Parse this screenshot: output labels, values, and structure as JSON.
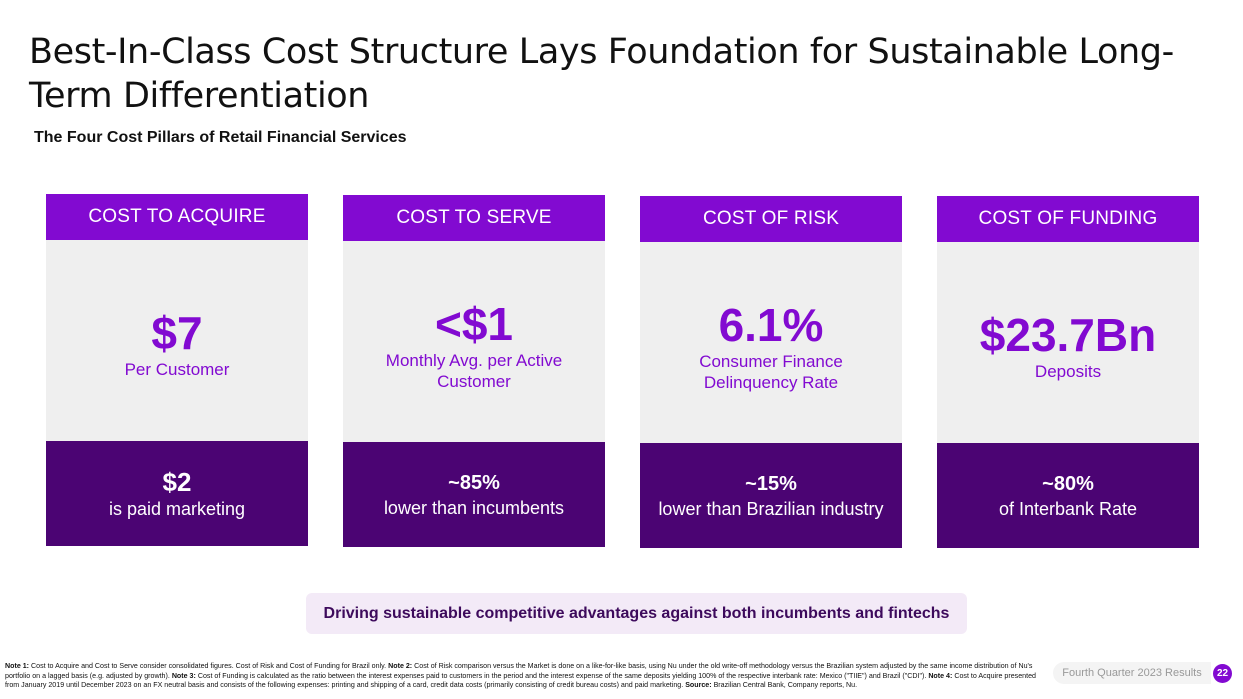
{
  "slide": {
    "title": "Best-In-Class Cost Structure Lays Foundation for Sustainable Long-Term Differentiation",
    "subtitle": "The Four Cost Pillars of Retail Financial Services"
  },
  "pillars": [
    {
      "header": "COST TO ACQUIRE",
      "value": "$7",
      "label": "Per Customer",
      "foot_value": "$2",
      "foot_label": "is paid marketing"
    },
    {
      "header": "COST TO SERVE",
      "value": "<$1",
      "label": "Monthly Avg. per Active Customer",
      "foot_value": "~85%",
      "foot_label": "lower than incumbents"
    },
    {
      "header": "COST OF RISK",
      "value": "6.1%",
      "label": "Consumer Finance Delinquency Rate",
      "foot_value": "~15%",
      "foot_label": "lower than Brazilian industry"
    },
    {
      "header": "COST OF FUNDING",
      "value": "$23.7Bn",
      "label": "Deposits",
      "foot_value": "~80%",
      "foot_label": "of Interbank Rate"
    }
  ],
  "tagline": "Driving sustainable competitive advantages against both incumbents and fintechs",
  "notes": {
    "n1_label": "Note 1:",
    "n1_text": " Cost to Acquire and Cost to Serve consider consolidated figures. Cost of Risk and Cost of Funding for Brazil only. ",
    "n2_label": "Note 2:",
    "n2_text": " Cost of Risk comparison versus the Market is done on a like-for-like basis, using Nu under the old write-off methodology versus the Brazilian system adjusted by the same income distribution of Nu's portfolio on a lagged basis (e.g. adjusted by growth). ",
    "n3_label": "Note 3:",
    "n3_text": " Cost of Funding is calculated as the ratio between the interest expenses paid to customers in the period and the interest expense of the same deposits yielding 100% of the respective interbank rate: Mexico (\"TIIE\") and Brazil (\"CDI\"). ",
    "n4_label": "Note 4:",
    "n4_text": " Cost to Acquire presented from January 2019 until December 2023 on an FX neutral basis and consists of the following expenses: printing and shipping of a card, credit data costs (primarily consisting of credit bureau costs) and paid marketing. ",
    "source_label": "Source:",
    "source_text": " Brazilian Central Bank, Company reports, Nu."
  },
  "footer": {
    "report": "Fourth Quarter 2023 Results",
    "page": "22"
  },
  "colors": {
    "purple": "#820ad1",
    "dark_purple": "#4b0473",
    "light_gray": "#efefef",
    "tagline_bg": "#f3eaf7"
  }
}
